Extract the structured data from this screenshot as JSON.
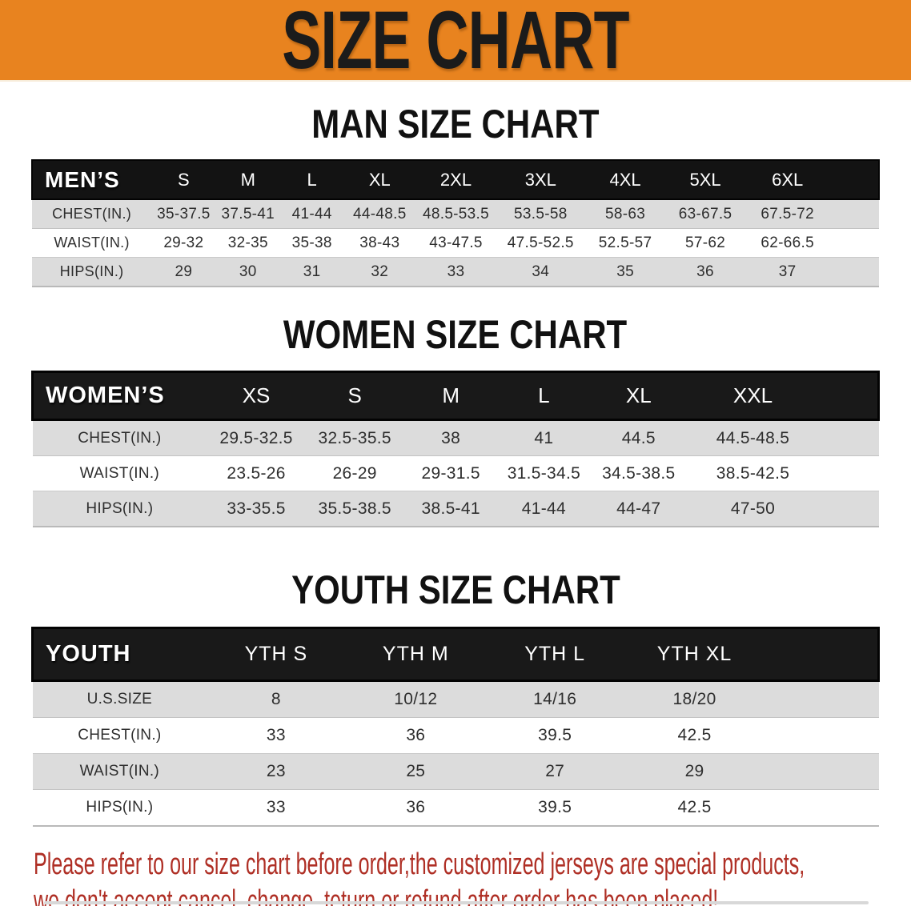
{
  "banner": {
    "title": "SIZE CHART"
  },
  "colors": {
    "banner_bg": "#E8831F",
    "header_bg": "#191919",
    "stripe": "#DCDCDC",
    "disclaimer_color": "#AF2F25"
  },
  "sections": [
    {
      "heading": "MAN SIZE CHART",
      "table": {
        "corner_label": "MEN’S",
        "columns": [
          "S",
          "M",
          "L",
          "XL",
          "2XL",
          "3XL",
          "4XL",
          "5XL",
          "6XL"
        ],
        "rows": [
          {
            "label": "CHEST(IN.)",
            "values": [
              "35-37.5",
              "37.5-41",
              "41-44",
              "44-48.5",
              "48.5-53.5",
              "53.5-58",
              "58-63",
              "63-67.5",
              "67.5-72"
            ]
          },
          {
            "label": "WAIST(IN.)",
            "values": [
              "29-32",
              "32-35",
              "35-38",
              "38-43",
              "43-47.5",
              "47.5-52.5",
              "52.5-57",
              "57-62",
              "62-66.5"
            ]
          },
          {
            "label": "HIPS(IN.)",
            "values": [
              "29",
              "30",
              "31",
              "32",
              "33",
              "34",
              "35",
              "36",
              "37"
            ]
          }
        ]
      }
    },
    {
      "heading": "WOMEN SIZE CHART",
      "table": {
        "corner_label": "WOMEN’S",
        "columns": [
          "XS",
          "S",
          "M",
          "L",
          "XL",
          "XXL"
        ],
        "rows": [
          {
            "label": "CHEST(IN.)",
            "values": [
              "29.5-32.5",
              "32.5-35.5",
              "38",
              "41",
              "44.5",
              "44.5-48.5"
            ]
          },
          {
            "label": "WAIST(IN.)",
            "values": [
              "23.5-26",
              "26-29",
              "29-31.5",
              "31.5-34.5",
              "34.5-38.5",
              "38.5-42.5"
            ]
          },
          {
            "label": "HIPS(IN.)",
            "values": [
              "33-35.5",
              "35.5-38.5",
              "38.5-41",
              "41-44",
              "44-47",
              "47-50"
            ]
          }
        ]
      }
    },
    {
      "heading": "YOUTH SIZE CHART",
      "table": {
        "corner_label": "YOUTH",
        "columns": [
          "YTH S",
          "YTH M",
          "YTH L",
          "YTH XL"
        ],
        "rows": [
          {
            "label": "U.S.SIZE",
            "values": [
              "8",
              "10/12",
              "14/16",
              "18/20"
            ]
          },
          {
            "label": "CHEST(IN.)",
            "values": [
              "33",
              "36",
              "39.5",
              "42.5"
            ]
          },
          {
            "label": "WAIST(IN.)",
            "values": [
              "23",
              "25",
              "27",
              "29"
            ]
          },
          {
            "label": "HIPS(IN.)",
            "values": [
              "33",
              "36",
              "39.5",
              "42.5"
            ]
          }
        ]
      }
    }
  ],
  "footer": {
    "line1": "Please refer to our size chart before order,the customized jerseys are special products,",
    "line2": "we don't accept cancel, change, teturn or refund after order has been placed!"
  }
}
